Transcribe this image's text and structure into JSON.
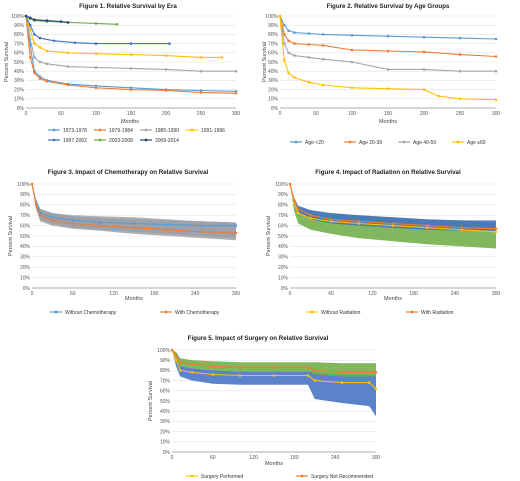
{
  "chart_data": [
    {
      "type": "line",
      "title": "Figure 1. Relative Survival by Era",
      "xlabel": "Months",
      "ylabel": "Percent Survival",
      "xlim": [
        0,
        300
      ],
      "ylim": [
        0,
        100
      ],
      "xticks": [
        0,
        50,
        100,
        150,
        200,
        250,
        300
      ],
      "yticks": [
        0,
        10,
        20,
        30,
        40,
        50,
        60,
        70,
        80,
        90,
        100
      ],
      "ytick_format": "percent",
      "grid": true,
      "legend": "bottom",
      "legend_columns": 4,
      "series": [
        {
          "name": "1973-1978",
          "color": "#5b9bd5",
          "x": [
            0,
            6,
            12,
            20,
            30,
            60,
            100,
            150,
            200,
            250,
            300
          ],
          "y": [
            100,
            68,
            40,
            34,
            30,
            26,
            24,
            22,
            20,
            19,
            18
          ]
        },
        {
          "name": "1979-1984",
          "color": "#ed7d31",
          "x": [
            0,
            6,
            12,
            20,
            30,
            60,
            100,
            150,
            200,
            250,
            300
          ],
          "y": [
            100,
            55,
            38,
            32,
            29,
            25,
            22,
            20,
            19,
            17,
            16
          ]
        },
        {
          "name": "1985-1990",
          "color": "#a5a5a5",
          "x": [
            0,
            6,
            12,
            20,
            30,
            60,
            100,
            150,
            200,
            250,
            300
          ],
          "y": [
            100,
            75,
            55,
            50,
            48,
            45,
            44,
            43,
            42,
            40,
            40
          ]
        },
        {
          "name": "1991-1996",
          "color": "#ffc000",
          "x": [
            0,
            6,
            12,
            20,
            30,
            60,
            100,
            150,
            200,
            250,
            280
          ],
          "y": [
            100,
            85,
            70,
            66,
            62,
            60,
            59,
            58,
            57,
            55,
            55
          ]
        },
        {
          "name": "1997-2002",
          "color": "#4472c4",
          "x": [
            0,
            6,
            12,
            20,
            40,
            70,
            100,
            150,
            205
          ],
          "y": [
            100,
            90,
            80,
            76,
            73,
            71,
            70,
            70,
            70
          ]
        },
        {
          "name": "2003-2008",
          "color": "#70ad47",
          "x": [
            0,
            6,
            12,
            30,
            60,
            100,
            130
          ],
          "y": [
            100,
            97,
            95,
            94,
            93,
            92,
            91
          ]
        },
        {
          "name": "2009-2014",
          "color": "#264478",
          "x": [
            0,
            6,
            12,
            30,
            50,
            60
          ],
          "y": [
            100,
            98,
            96,
            95,
            94,
            93
          ]
        }
      ]
    },
    {
      "type": "line",
      "title": "Figure 2. Relative Survival by Age Groups",
      "xlabel": "Months",
      "ylabel": "Percent Survival",
      "xlim": [
        0,
        300
      ],
      "ylim": [
        0,
        100
      ],
      "xticks": [
        0,
        50,
        100,
        150,
        200,
        250,
        300
      ],
      "yticks": [
        0,
        10,
        20,
        30,
        40,
        50,
        60,
        70,
        80,
        90,
        100
      ],
      "ytick_format": "percent",
      "grid": true,
      "legend": "bottom",
      "series": [
        {
          "name": "Age <20",
          "color": "#5b9bd5",
          "x": [
            0,
            6,
            12,
            20,
            40,
            60,
            100,
            150,
            200,
            250,
            300
          ],
          "y": [
            100,
            90,
            84,
            82,
            81,
            80,
            79,
            78,
            77,
            76,
            75
          ]
        },
        {
          "name": "Age 20-39",
          "color": "#ed7d31",
          "x": [
            0,
            6,
            12,
            20,
            40,
            60,
            100,
            150,
            200,
            250,
            300
          ],
          "y": [
            100,
            80,
            73,
            70,
            69,
            68,
            63,
            62,
            61,
            58,
            56
          ]
        },
        {
          "name": "Age 40-59",
          "color": "#a5a5a5",
          "x": [
            0,
            6,
            12,
            20,
            40,
            60,
            100,
            150,
            200,
            250,
            300
          ],
          "y": [
            100,
            70,
            60,
            57,
            55,
            53,
            50,
            42,
            42,
            40,
            40
          ]
        },
        {
          "name": "Age ≥60",
          "color": "#ffc000",
          "x": [
            0,
            6,
            12,
            20,
            40,
            60,
            100,
            150,
            200,
            220,
            250,
            300
          ],
          "y": [
            100,
            52,
            38,
            33,
            28,
            25,
            22,
            21,
            20,
            13,
            10,
            9
          ]
        }
      ]
    },
    {
      "type": "line",
      "title": "Figure 3. Impact of Chemotherapy on Relative Survival",
      "xlabel": "Months",
      "ylabel": "Percent Survival",
      "xlim": [
        0,
        300
      ],
      "ylim": [
        0,
        100
      ],
      "xticks": [
        0,
        60,
        120,
        180,
        240,
        300
      ],
      "yticks": [
        0,
        10,
        20,
        30,
        40,
        50,
        60,
        70,
        80,
        90,
        100
      ],
      "ytick_format": "percent",
      "grid": true,
      "legend": "bottom",
      "series": [
        {
          "name": "Without Chemotherapy",
          "color": "#5b9bd5",
          "x": [
            0,
            6,
            12,
            30,
            60,
            100,
            150,
            200,
            250,
            300
          ],
          "y": [
            100,
            82,
            72,
            68,
            65,
            63,
            62,
            61,
            60,
            60
          ],
          "band_upper": [
            100,
            85,
            76,
            72,
            69,
            67,
            66,
            65,
            64,
            63
          ],
          "band_lower": [
            100,
            76,
            66,
            62,
            58,
            56,
            54,
            52,
            50,
            48
          ],
          "band_color": "#4472c4"
        },
        {
          "name": "With Chemotherapy",
          "color": "#ed7d31",
          "x": [
            0,
            6,
            12,
            30,
            60,
            100,
            150,
            200,
            250,
            300
          ],
          "y": [
            100,
            80,
            70,
            65,
            62,
            60,
            58,
            56,
            54,
            53
          ],
          "band_upper": [
            100,
            84,
            76,
            72,
            70,
            69,
            68,
            66,
            64,
            63
          ],
          "band_lower": [
            100,
            76,
            64,
            60,
            57,
            55,
            52,
            50,
            48,
            46
          ],
          "band_color": "#a5a5a5"
        }
      ]
    },
    {
      "type": "line",
      "title": "Figure 4. Impact of Radiation on Relative Survival",
      "xlabel": "Months",
      "ylabel": "Percent Survival",
      "xlim": [
        0,
        300
      ],
      "ylim": [
        0,
        100
      ],
      "xticks": [
        0,
        60,
        120,
        180,
        240,
        300
      ],
      "yticks": [
        0,
        10,
        20,
        30,
        40,
        50,
        60,
        70,
        80,
        90,
        100
      ],
      "ytick_format": "percent",
      "grid": true,
      "legend": "bottom",
      "series": [
        {
          "name": "Without Radiation",
          "color": "#ffc000",
          "x": [
            0,
            6,
            12,
            30,
            60,
            100,
            150,
            200,
            250,
            300
          ],
          "y": [
            100,
            82,
            72,
            67,
            64,
            62,
            60,
            58,
            56,
            54
          ],
          "band_upper": [
            100,
            86,
            78,
            74,
            72,
            70,
            68,
            66,
            65,
            63
          ],
          "band_lower": [
            100,
            74,
            62,
            56,
            52,
            48,
            45,
            42,
            40,
            38
          ],
          "band_color": "#70ad47"
        },
        {
          "name": "With Radiation",
          "color": "#ed7d31",
          "x": [
            0,
            6,
            12,
            30,
            60,
            100,
            150,
            200,
            250,
            300
          ],
          "y": [
            100,
            84,
            76,
            70,
            66,
            64,
            62,
            60,
            58,
            57
          ],
          "band_upper": [
            100,
            87,
            79,
            75,
            72,
            70,
            68,
            66,
            65,
            65
          ],
          "band_lower": [
            100,
            80,
            72,
            66,
            62,
            60,
            58,
            56,
            55,
            55
          ],
          "band_color": "#4472c4"
        }
      ]
    },
    {
      "type": "line",
      "title": "Figure 5. Impact of Surgery on Relative Survival",
      "xlabel": "Months",
      "ylabel": "Percent Survival",
      "xlim": [
        0,
        300
      ],
      "ylim": [
        0,
        100
      ],
      "xticks": [
        0,
        60,
        120,
        180,
        240,
        300
      ],
      "yticks": [
        0,
        10,
        20,
        30,
        40,
        50,
        60,
        70,
        80,
        90,
        100
      ],
      "ytick_format": "percent",
      "grid": true,
      "legend": "bottom",
      "series": [
        {
          "name": "Surgery Performed",
          "color": "#ffc000",
          "x": [
            0,
            6,
            12,
            30,
            60,
            100,
            150,
            200,
            210,
            250,
            290,
            300
          ],
          "y": [
            100,
            90,
            80,
            78,
            76,
            75,
            75,
            75,
            70,
            68,
            68,
            62
          ],
          "band_upper": [
            100,
            92,
            84,
            82,
            80,
            79,
            79,
            79,
            78,
            76,
            76,
            75
          ],
          "band_lower": [
            100,
            84,
            74,
            70,
            67,
            66,
            66,
            66,
            52,
            48,
            45,
            35
          ],
          "band_color": "#4472c4"
        },
        {
          "name": "Surgery Not Recommended",
          "color": "#ed7d31",
          "x": [
            0,
            6,
            12,
            30,
            60,
            100,
            150,
            200,
            210,
            250,
            300
          ],
          "y": [
            100,
            95,
            88,
            86,
            84,
            83,
            83,
            83,
            80,
            78,
            78
          ],
          "band_upper": [
            100,
            98,
            92,
            90,
            89,
            88,
            88,
            88,
            88,
            87,
            87
          ],
          "band_lower": [
            100,
            92,
            84,
            82,
            80,
            79,
            79,
            79,
            76,
            74,
            74
          ],
          "band_color": "#70ad47"
        }
      ]
    }
  ]
}
